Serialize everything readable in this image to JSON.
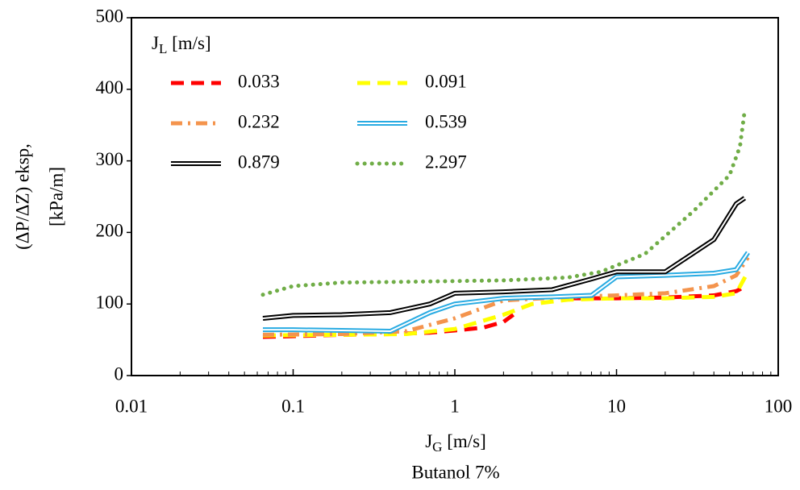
{
  "chart_data": {
    "type": "line",
    "x_label": [
      "J",
      "G",
      " [m/s]"
    ],
    "y_label": [
      "(ΔP/ΔZ) eksp,",
      "[kPa/m]"
    ],
    "subtitle": "Butanol 7%",
    "legend_title": [
      "J",
      "L",
      " [m/s]"
    ],
    "log_x": true,
    "xlim": [
      0.01,
      100
    ],
    "xticks": [
      0.01,
      0.1,
      1,
      10,
      100
    ],
    "ylim": [
      0,
      500
    ],
    "yticks": [
      0,
      100,
      200,
      300,
      400,
      500
    ],
    "series": [
      {
        "name": "0.033",
        "color": "#ff0000",
        "style": "dash",
        "x": [
          0.065,
          0.1,
          0.2,
          0.4,
          0.7,
          1,
          1.5,
          2,
          2.3,
          null,
          5,
          10,
          20,
          40,
          55,
          62
        ],
        "values": [
          54,
          55,
          57,
          58,
          60,
          63,
          67,
          75,
          85,
          null,
          108,
          108,
          109,
          112,
          118,
          124
        ]
      },
      {
        "name": "0.091",
        "color": "#ffff00",
        "style": "dash",
        "x": [
          0.065,
          0.2,
          0.5,
          1,
          2,
          3,
          5,
          10,
          20,
          40,
          55,
          65
        ],
        "values": [
          56,
          57,
          58,
          65,
          85,
          100,
          106,
          108,
          108,
          110,
          115,
          145
        ]
      },
      {
        "name": "0.232",
        "color": "#f4944d",
        "style": "dashdot",
        "x": [
          0.065,
          0.2,
          0.5,
          1,
          2,
          5,
          10,
          20,
          40,
          55,
          65
        ],
        "values": [
          57,
          58,
          62,
          80,
          105,
          110,
          112,
          115,
          125,
          140,
          165
        ]
      },
      {
        "name": "0.539",
        "color": "#29abe2",
        "style": "double",
        "x": [
          0.065,
          0.1,
          0.2,
          0.4,
          0.7,
          1,
          2,
          4,
          7,
          10,
          20,
          40,
          55,
          65
        ],
        "values": [
          64,
          64,
          63,
          62,
          88,
          100,
          108,
          110,
          112,
          138,
          140,
          143,
          148,
          172
        ]
      },
      {
        "name": "0.879",
        "color": "#000000",
        "style": "double",
        "x": [
          0.065,
          0.1,
          0.2,
          0.4,
          0.7,
          1,
          2,
          4,
          7,
          10,
          20,
          40,
          55,
          62
        ],
        "values": [
          80,
          84,
          85,
          88,
          100,
          115,
          117,
          120,
          135,
          145,
          145,
          190,
          240,
          248
        ]
      },
      {
        "name": "2.297",
        "color": "#70ad47",
        "style": "dotted",
        "x": [
          0.065,
          0.1,
          0.2,
          0.5,
          1,
          2,
          5,
          8,
          15,
          30,
          50,
          58,
          62
        ],
        "values": [
          113,
          125,
          130,
          131,
          132,
          133,
          137,
          145,
          170,
          230,
          280,
          320,
          370
        ]
      }
    ]
  }
}
